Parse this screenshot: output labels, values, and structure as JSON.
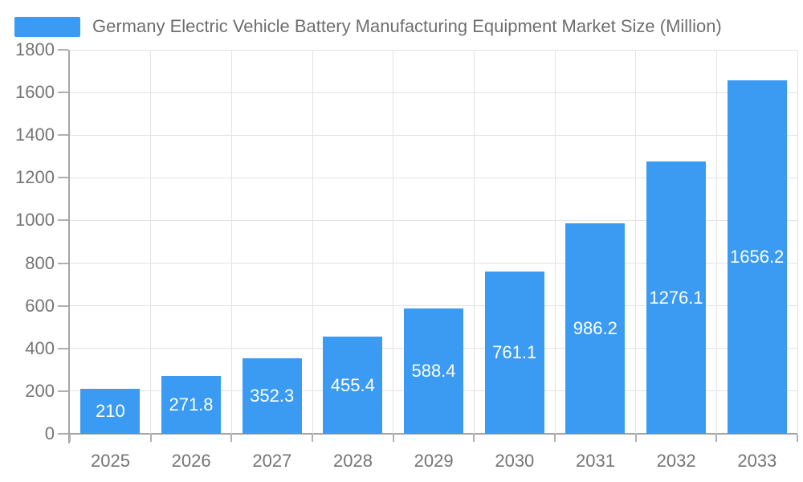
{
  "chart_data": {
    "type": "bar",
    "title": "Germany Electric Vehicle Battery Manufacturing Equipment Market Size (Million)",
    "categories": [
      "2025",
      "2026",
      "2027",
      "2028",
      "2029",
      "2030",
      "2031",
      "2032",
      "2033"
    ],
    "values": [
      210,
      271.8,
      352.3,
      455.4,
      588.4,
      761.1,
      986.2,
      1276.1,
      1656.2
    ],
    "value_labels": [
      "210",
      "271.8",
      "352.3",
      "455.4",
      "588.4",
      "761.1",
      "986.2",
      "1276.1",
      "1656.2"
    ],
    "xlabel": "",
    "ylabel": "",
    "ylim": [
      0,
      1800
    ],
    "yticks": [
      0,
      200,
      400,
      600,
      800,
      1000,
      1200,
      1400,
      1600,
      1800
    ],
    "grid": true,
    "legend_position": "top-left",
    "colors": {
      "bar": "#3b9bf2",
      "grid": "#e3e3e3",
      "axis": "#a6a6a6",
      "tick": "#b0b0b0",
      "axis_label": "#757575",
      "legend_text": "#6e6e6e",
      "value_label": "#ffffff",
      "background": "#ffffff"
    }
  }
}
